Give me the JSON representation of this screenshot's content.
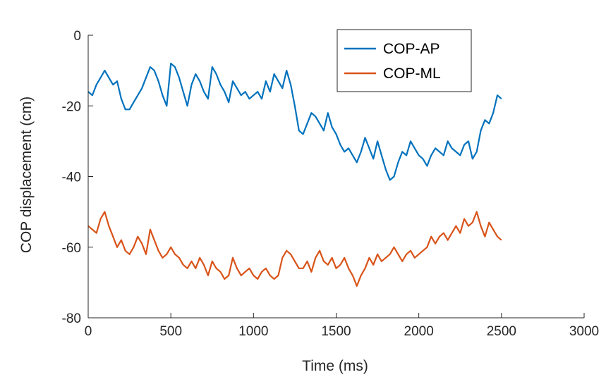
{
  "chart_data": {
    "type": "line",
    "title": "",
    "xlabel": "Time (ms)",
    "ylabel": "COP displacement (cm)",
    "xlim": [
      0,
      3000
    ],
    "ylim": [
      -80,
      0
    ],
    "xticks": [
      0,
      500,
      1000,
      1500,
      2000,
      2500,
      3000
    ],
    "yticks": [
      0,
      -20,
      -40,
      -60,
      -80
    ],
    "xtick_labels": [
      "0",
      "500",
      "1000",
      "1500",
      "2000",
      "2500",
      "3000"
    ],
    "ytick_labels": [
      "0",
      "-20",
      "-40",
      "-60",
      "-80"
    ],
    "grid": false,
    "legend": "top-right",
    "series": [
      {
        "name": "COP-AP",
        "color": "#0072BD",
        "x": [
          0,
          25,
          50,
          75,
          100,
          125,
          150,
          175,
          200,
          225,
          250,
          275,
          300,
          325,
          350,
          375,
          400,
          425,
          450,
          475,
          500,
          525,
          550,
          575,
          600,
          625,
          650,
          675,
          700,
          725,
          750,
          775,
          800,
          825,
          850,
          875,
          900,
          925,
          950,
          975,
          1000,
          1025,
          1050,
          1075,
          1100,
          1125,
          1150,
          1175,
          1200,
          1225,
          1250,
          1275,
          1300,
          1325,
          1350,
          1375,
          1400,
          1425,
          1450,
          1475,
          1500,
          1525,
          1550,
          1575,
          1600,
          1625,
          1650,
          1675,
          1700,
          1725,
          1750,
          1775,
          1800,
          1825,
          1850,
          1875,
          1900,
          1925,
          1950,
          1975,
          2000,
          2025,
          2050,
          2075,
          2100,
          2125,
          2150,
          2175,
          2200,
          2225,
          2250,
          2275,
          2300,
          2325,
          2350,
          2375,
          2400,
          2425,
          2450,
          2475,
          2500
        ],
        "values": [
          -16,
          -17,
          -14,
          -12,
          -10,
          -12,
          -14,
          -13,
          -18,
          -21,
          -21,
          -19,
          -17,
          -15,
          -12,
          -9,
          -10,
          -13,
          -17,
          -20,
          -8,
          -9,
          -12,
          -16,
          -20,
          -14,
          -11,
          -13,
          -16,
          -18,
          -9,
          -11,
          -14,
          -16,
          -19,
          -13,
          -15,
          -17,
          -16,
          -18,
          -17,
          -16,
          -18,
          -13,
          -16,
          -11,
          -13,
          -15,
          -10,
          -14,
          -20,
          -27,
          -28,
          -25,
          -22,
          -23,
          -25,
          -27,
          -22,
          -26,
          -28,
          -31,
          -33,
          -32,
          -34,
          -36,
          -33,
          -29,
          -32,
          -35,
          -30,
          -34,
          -38,
          -41,
          -40,
          -36,
          -33,
          -34,
          -30,
          -32,
          -34,
          -35,
          -37,
          -34,
          -32,
          -33,
          -34,
          -30,
          -32,
          -33,
          -34,
          -31,
          -30,
          -35,
          -33,
          -27,
          -24,
          -25,
          -22,
          -17,
          -18
        ]
      },
      {
        "name": "COP-ML",
        "color": "#D95319",
        "x": [
          0,
          25,
          50,
          75,
          100,
          125,
          150,
          175,
          200,
          225,
          250,
          275,
          300,
          325,
          350,
          375,
          400,
          425,
          450,
          475,
          500,
          525,
          550,
          575,
          600,
          625,
          650,
          675,
          700,
          725,
          750,
          775,
          800,
          825,
          850,
          875,
          900,
          925,
          950,
          975,
          1000,
          1025,
          1050,
          1075,
          1100,
          1125,
          1150,
          1175,
          1200,
          1225,
          1250,
          1275,
          1300,
          1325,
          1350,
          1375,
          1400,
          1425,
          1450,
          1475,
          1500,
          1525,
          1550,
          1575,
          1600,
          1625,
          1650,
          1675,
          1700,
          1725,
          1750,
          1775,
          1800,
          1825,
          1850,
          1875,
          1900,
          1925,
          1950,
          1975,
          2000,
          2025,
          2050,
          2075,
          2100,
          2125,
          2150,
          2175,
          2200,
          2225,
          2250,
          2275,
          2300,
          2325,
          2350,
          2375,
          2400,
          2425,
          2450,
          2475,
          2500
        ],
        "values": [
          -54,
          -55,
          -56,
          -52,
          -50,
          -54,
          -57,
          -60,
          -58,
          -61,
          -62,
          -60,
          -57,
          -59,
          -62,
          -55,
          -58,
          -61,
          -63,
          -62,
          -60,
          -62,
          -63,
          -65,
          -66,
          -64,
          -66,
          -63,
          -65,
          -68,
          -64,
          -66,
          -67,
          -69,
          -68,
          -63,
          -66,
          -68,
          -67,
          -66,
          -68,
          -69,
          -67,
          -66,
          -68,
          -69,
          -68,
          -63,
          -61,
          -62,
          -64,
          -66,
          -66,
          -64,
          -67,
          -63,
          -61,
          -64,
          -65,
          -63,
          -66,
          -65,
          -63,
          -66,
          -68,
          -71,
          -68,
          -66,
          -63,
          -65,
          -62,
          -64,
          -63,
          -62,
          -60,
          -62,
          -64,
          -62,
          -61,
          -63,
          -62,
          -61,
          -60,
          -57,
          -59,
          -57,
          -56,
          -58,
          -56,
          -54,
          -56,
          -52,
          -54,
          -53,
          -50,
          -54,
          -57,
          -53,
          -55,
          -57,
          -58
        ]
      }
    ]
  }
}
